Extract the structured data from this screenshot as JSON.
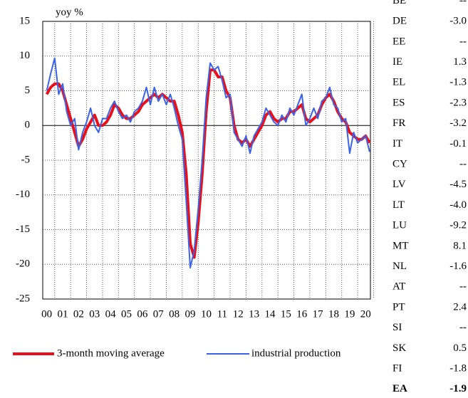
{
  "chart_data": {
    "type": "line",
    "y_label": "yoy %",
    "x": [
      2000,
      2000.25,
      2000.5,
      2000.75,
      2001,
      2001.25,
      2001.5,
      2001.75,
      2002,
      2002.25,
      2002.5,
      2002.75,
      2003,
      2003.25,
      2003.5,
      2003.75,
      2004,
      2004.25,
      2004.5,
      2004.75,
      2005,
      2005.25,
      2005.5,
      2005.75,
      2006,
      2006.25,
      2006.5,
      2006.75,
      2007,
      2007.25,
      2007.5,
      2007.75,
      2008,
      2008.25,
      2008.5,
      2008.75,
      2009,
      2009.25,
      2009.5,
      2009.75,
      2010,
      2010.25,
      2010.5,
      2010.75,
      2011,
      2011.25,
      2011.5,
      2011.75,
      2012,
      2012.25,
      2012.5,
      2012.75,
      2013,
      2013.25,
      2013.5,
      2013.75,
      2014,
      2014.25,
      2014.5,
      2014.75,
      2015,
      2015.25,
      2015.5,
      2015.75,
      2016,
      2016.25,
      2016.5,
      2016.75,
      2017,
      2017.25,
      2017.5,
      2017.75,
      2018,
      2018.25,
      2018.5,
      2018.75,
      2019,
      2019.25,
      2019.5,
      2019.75,
      2020,
      2020.25
    ],
    "series": [
      {
        "name": "3-month moving average",
        "color": "#e8101a",
        "width": 4,
        "values": [
          4.5,
          5.5,
          6,
          6,
          5,
          3,
          1,
          -1,
          -3,
          -2,
          -0.5,
          0.5,
          1.5,
          0,
          0,
          0.5,
          1.5,
          3,
          2.5,
          1.5,
          1,
          1,
          1.5,
          2,
          3,
          3.5,
          4,
          4.5,
          4,
          4.5,
          4,
          3.5,
          3.5,
          1.5,
          -1,
          -7,
          -17,
          -19,
          -14,
          -7,
          2,
          8,
          8,
          7,
          7,
          5,
          4,
          0,
          -2,
          -2.5,
          -2,
          -3,
          -2,
          -1,
          0,
          1.5,
          2,
          1,
          0.5,
          1,
          1,
          2,
          2,
          2.5,
          3,
          1,
          0.5,
          1,
          1.5,
          3,
          4,
          4.5,
          3.5,
          2,
          1,
          0.5,
          -1,
          -1.5,
          -2,
          -2,
          -1.5,
          -2.5
        ]
      },
      {
        "name": "industrial production",
        "color": "#3b63e6",
        "width": 2,
        "values": [
          5,
          7.5,
          9.7,
          4.5,
          6,
          2,
          0,
          1,
          -3.5,
          -1,
          0.5,
          2.5,
          0,
          -1,
          1,
          1,
          2.5,
          3.5,
          2,
          1,
          1.5,
          0.5,
          2,
          2.5,
          3.5,
          5.5,
          3,
          5.5,
          3.5,
          4.5,
          3,
          4.5,
          2.5,
          0,
          -2,
          -11,
          -20.5,
          -18,
          -12,
          -5,
          4,
          9,
          8,
          8.5,
          6.5,
          4,
          4.5,
          -1,
          -2,
          -3,
          -1.5,
          -4,
          -1.5,
          -0.5,
          0.5,
          2.5,
          1.5,
          0.5,
          0,
          1.5,
          0.5,
          2.5,
          1.5,
          3,
          4.5,
          0,
          1,
          2.5,
          1,
          3.5,
          4,
          5.5,
          3,
          2.5,
          0.5,
          1,
          -4,
          -1,
          -2.5,
          -2,
          -1.5,
          -3.8
        ]
      }
    ],
    "xlim": [
      1999.75,
      2020.3
    ],
    "xticks": [
      {
        "value": 2000,
        "label": "00"
      },
      {
        "value": 2001,
        "label": "01"
      },
      {
        "value": 2002,
        "label": "02"
      },
      {
        "value": 2003,
        "label": "03"
      },
      {
        "value": 2004,
        "label": "04"
      },
      {
        "value": 2005,
        "label": "05"
      },
      {
        "value": 2006,
        "label": "06"
      },
      {
        "value": 2007,
        "label": "07"
      },
      {
        "value": 2008,
        "label": "08"
      },
      {
        "value": 2009,
        "label": "09"
      },
      {
        "value": 2010,
        "label": "10"
      },
      {
        "value": 2011,
        "label": "11"
      },
      {
        "value": 2012,
        "label": "12"
      },
      {
        "value": 2013,
        "label": "13"
      },
      {
        "value": 2014,
        "label": "14"
      },
      {
        "value": 2015,
        "label": "15"
      },
      {
        "value": 2016,
        "label": "16"
      },
      {
        "value": 2017,
        "label": "17"
      },
      {
        "value": 2018,
        "label": "18"
      },
      {
        "value": 2019,
        "label": "19"
      },
      {
        "value": 2020,
        "label": "20"
      }
    ],
    "ylim": [
      -25,
      15
    ],
    "yticks": [
      -25,
      -20,
      -15,
      -10,
      -5,
      0,
      5,
      10,
      15
    ],
    "grid": true
  },
  "table": {
    "rows": [
      [
        "BE",
        "--"
      ],
      [
        "DE",
        "-3.0"
      ],
      [
        "EE",
        "--"
      ],
      [
        "IE",
        "1.3"
      ],
      [
        "EL",
        "-1.3"
      ],
      [
        "ES",
        "-2.3"
      ],
      [
        "FR",
        "-3.2"
      ],
      [
        "IT",
        "-0.1"
      ],
      [
        "CY",
        "--"
      ],
      [
        "LV",
        "-4.5"
      ],
      [
        "LT",
        "-4.0"
      ],
      [
        "LU",
        "-9.2"
      ],
      [
        "MT",
        "8.1"
      ],
      [
        "NL",
        "-1.6"
      ],
      [
        "AT",
        "--"
      ],
      [
        "PT",
        "2.4"
      ],
      [
        "SI",
        "--"
      ],
      [
        "SK",
        "0.5"
      ],
      [
        "FI",
        "-1.8"
      ],
      [
        "EA",
        "-1.9"
      ]
    ]
  }
}
